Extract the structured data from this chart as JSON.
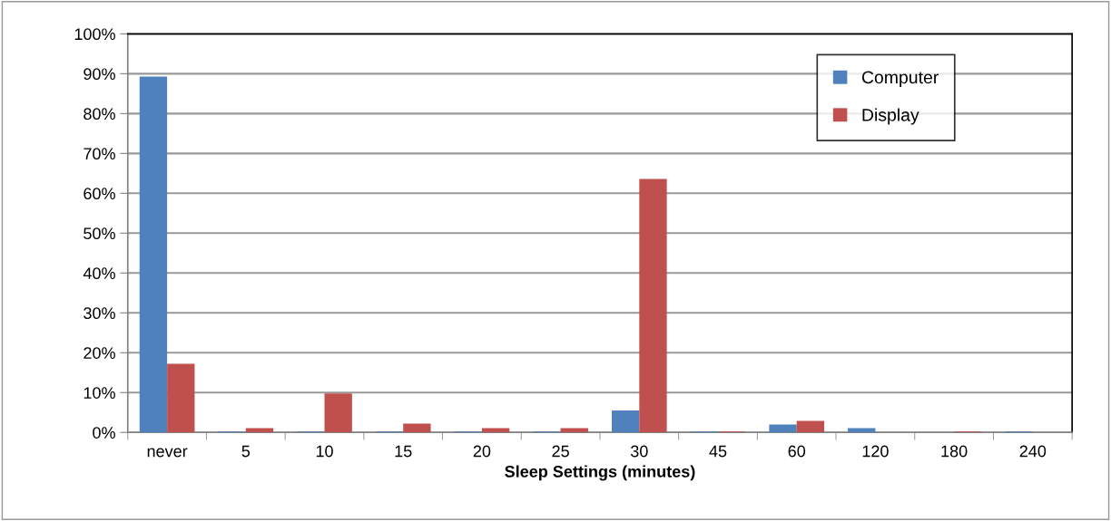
{
  "chart_data": {
    "type": "bar",
    "xlabel": "Sleep Settings (minutes)",
    "categories": [
      "never",
      "5",
      "10",
      "15",
      "20",
      "25",
      "30",
      "45",
      "60",
      "120",
      "180",
      "240"
    ],
    "series": [
      {
        "name": "Computer",
        "color": "#4f81bd",
        "values": [
          89.3,
          0.2,
          0.2,
          0.2,
          0.2,
          0.2,
          5.5,
          0.2,
          2.0,
          1.1,
          0,
          0.2
        ]
      },
      {
        "name": "Display",
        "color": "#c0504d",
        "values": [
          17.2,
          1.1,
          9.8,
          2.2,
          1.1,
          1.1,
          63.6,
          0.2,
          2.9,
          0,
          0.2,
          0
        ]
      }
    ],
    "ylim": [
      0,
      100
    ],
    "yticks": [
      {
        "value": 0,
        "label": "0%"
      },
      {
        "value": 10,
        "label": "10%"
      },
      {
        "value": 20,
        "label": "20%"
      },
      {
        "value": 30,
        "label": "30%"
      },
      {
        "value": 40,
        "label": "40%"
      },
      {
        "value": 50,
        "label": "50%"
      },
      {
        "value": 60,
        "label": "60%"
      },
      {
        "value": 70,
        "label": "70%"
      },
      {
        "value": 80,
        "label": "80%"
      },
      {
        "value": 90,
        "label": "90%"
      },
      {
        "value": 100,
        "label": "100%"
      }
    ],
    "grid": "y",
    "legend": "top right"
  }
}
